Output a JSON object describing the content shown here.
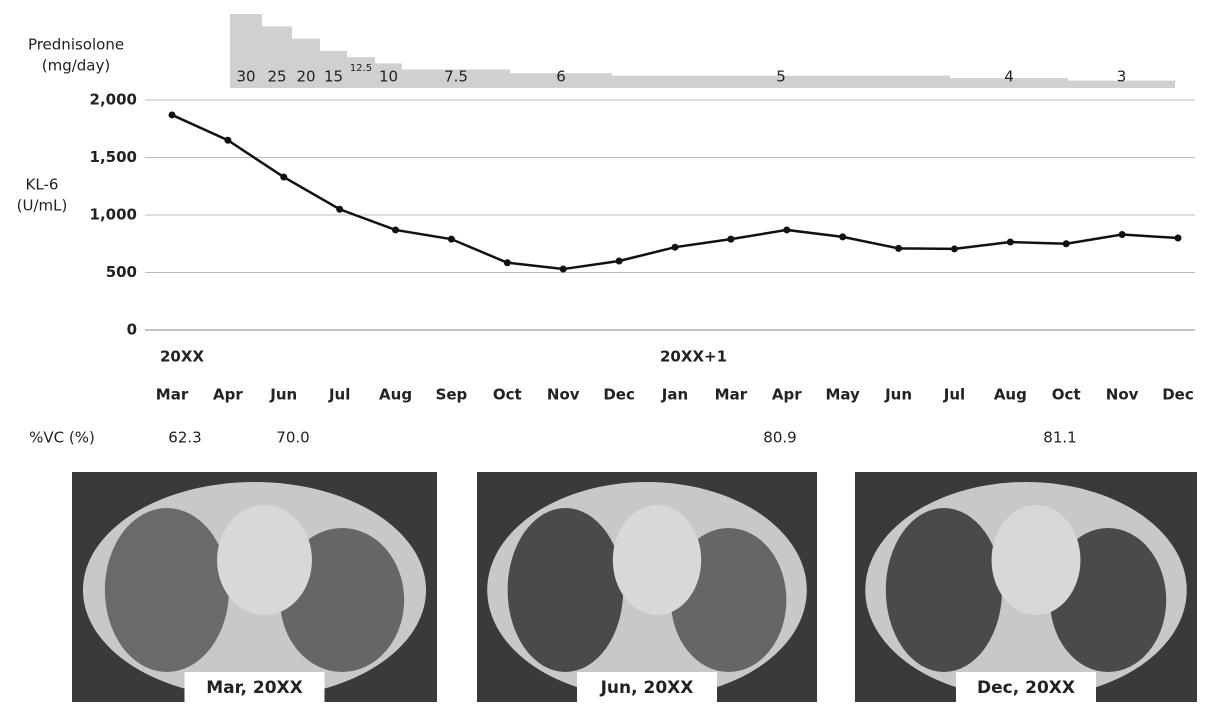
{
  "chart_data": {
    "type": "line",
    "y_label": [
      "KL-6",
      "(U/mL)"
    ],
    "categories": [
      "Mar",
      "Apr",
      "Jun",
      "Jul",
      "Aug",
      "Sep",
      "Oct",
      "Nov",
      "Dec",
      "Jan",
      "Mar",
      "Apr",
      "May",
      "Jun",
      "Jul",
      "Aug",
      "Oct",
      "Nov",
      "Dec"
    ],
    "years": [
      "20XX",
      "20XX+1"
    ],
    "series": [
      {
        "name": "KL-6",
        "color": "#111111",
        "values": [
          1870,
          1650,
          1330,
          1050,
          870,
          790,
          585,
          530,
          600,
          720,
          790,
          870,
          810,
          710,
          705,
          765,
          750,
          830,
          800
        ]
      }
    ],
    "ylim": [
      0,
      2000
    ],
    "yticks": [
      {
        "value": 0,
        "label": "0"
      },
      {
        "value": 500,
        "label": "500"
      },
      {
        "value": 1000,
        "label": "1,000"
      },
      {
        "value": 1500,
        "label": "1,500"
      },
      {
        "value": 2000,
        "label": "2,000"
      }
    ],
    "grid": true,
    "prednisolone": {
      "label": [
        "Prednisolone",
        "(mg/day)"
      ],
      "color": "#d0d0d0",
      "doses": [
        30,
        25,
        20,
        15,
        12.5,
        10,
        7.5,
        6,
        5,
        4,
        3
      ]
    },
    "vc": {
      "label": "%VC (%)",
      "values": [
        62.3,
        70.0,
        80.9,
        81.1
      ],
      "value_labels": [
        "62.3",
        "70.0",
        "80.9",
        "81.1"
      ]
    }
  },
  "images": [
    {
      "caption": "Mar, 20XX"
    },
    {
      "caption": "Jun, 20XX"
    },
    {
      "caption": "Dec, 20XX"
    }
  ]
}
